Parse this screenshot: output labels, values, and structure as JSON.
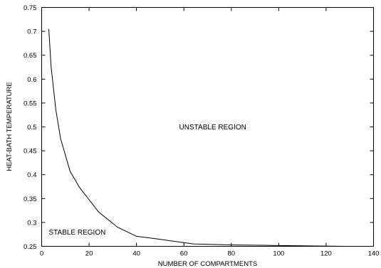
{
  "chart_data": {
    "type": "line",
    "title": "",
    "xlabel": "NUMBER OF COMPARTMENTS",
    "ylabel": "HEAT-BATH TEMPERATURE",
    "xlim": [
      0,
      140
    ],
    "ylim": [
      0.25,
      0.75
    ],
    "grid": false,
    "legend": "none",
    "x_ticks": [
      0,
      20,
      40,
      60,
      80,
      100,
      120,
      140
    ],
    "y_ticks": [
      0.25,
      0.3,
      0.35,
      0.4,
      0.45,
      0.5,
      0.55,
      0.6,
      0.65,
      0.7,
      0.75
    ],
    "series": [
      {
        "x": [
          3,
          4,
          6,
          8,
          12,
          16,
          24,
          32,
          40,
          48,
          64,
          80,
          96,
          112,
          128
        ],
        "y": [
          0.705,
          0.625,
          0.535,
          0.475,
          0.407,
          0.373,
          0.322,
          0.29,
          0.271,
          0.266,
          0.255,
          0.253,
          0.252,
          0.251,
          0.25
        ],
        "color": "#000000"
      }
    ],
    "annotations": [
      {
        "text": "UNSTABLE REGION",
        "x": 58,
        "y": 0.5
      },
      {
        "text": "STABLE REGION",
        "x": 3,
        "y": 0.28
      }
    ]
  }
}
